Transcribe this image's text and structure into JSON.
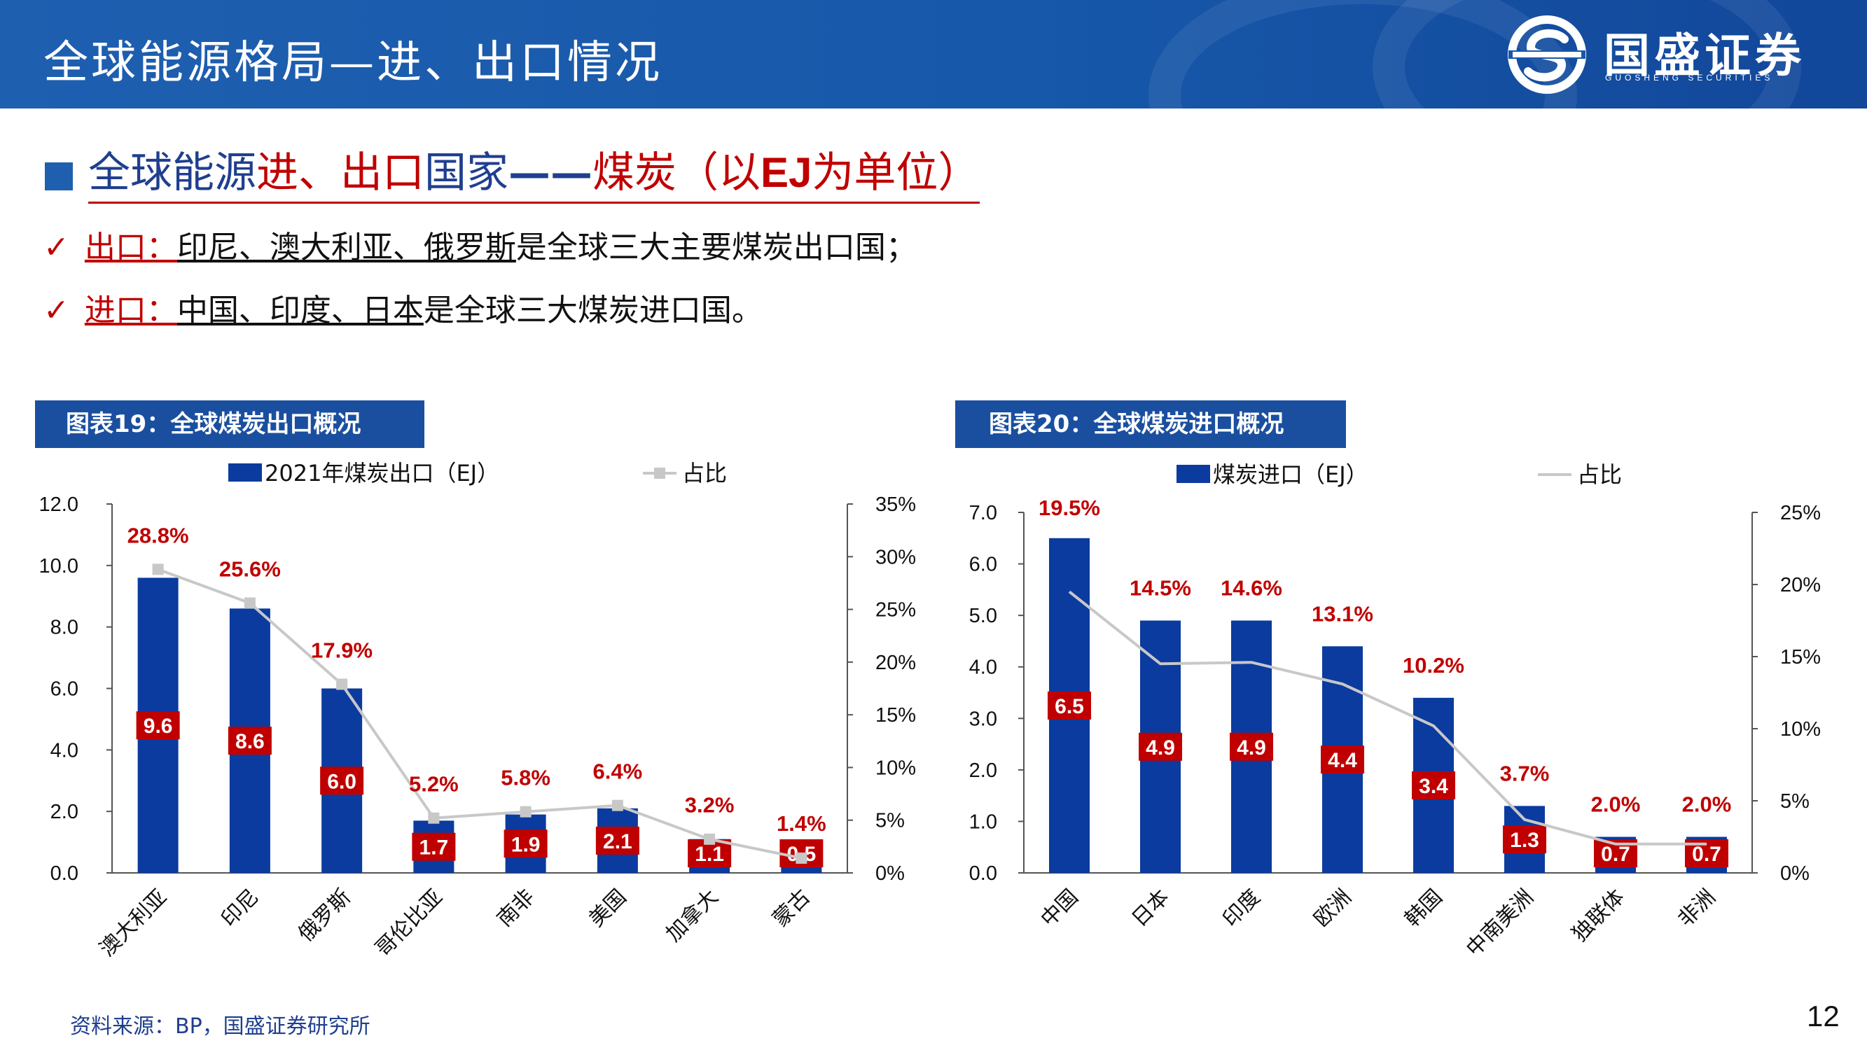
{
  "header": {
    "title": "全球能源格局—进、出口情况",
    "logo_text": "国盛证券",
    "logo_sub": "GUOSHENG SECURITIES"
  },
  "section": {
    "heading_part1": "全球能源",
    "heading_part2": "进、出口",
    "heading_part3": "国家",
    "heading_part4": "——",
    "heading_part5": "煤炭（以",
    "heading_part6": "EJ",
    "heading_part7": "为单位）"
  },
  "bullets": [
    {
      "check": "✓",
      "keyword": "出口：",
      "names": "印尼、澳大利亚、俄罗斯",
      "rest": "是全球三大主要煤炭出口国；"
    },
    {
      "check": "✓",
      "keyword": "进口：",
      "names": "中国、印度、日本",
      "rest": "是全球三大煤炭进口国。"
    }
  ],
  "colors": {
    "bar_blue": "#0b3b9f",
    "label_red": "#c00000",
    "line_gray": "#c8c8c8",
    "header_blue": "#1f5fb0"
  },
  "figures": [
    {
      "banner": "图表19：全球煤炭出口概况"
    },
    {
      "banner": "图表20：全球煤炭进口概况"
    }
  ],
  "chart_data": [
    {
      "type": "bar",
      "title": "图表19：全球煤炭出口概况",
      "categories": [
        "澳大利亚",
        "印尼",
        "俄罗斯",
        "哥伦比亚",
        "南非",
        "美国",
        "加拿大",
        "蒙古"
      ],
      "series": [
        {
          "name": "2021年煤炭出口（EJ）",
          "type": "bar",
          "axis": "left",
          "values": [
            9.6,
            8.6,
            6.0,
            1.7,
            1.9,
            2.1,
            1.1,
            0.5
          ],
          "labels": [
            "9.6",
            "8.6",
            "6.0",
            "1.7",
            "1.9",
            "2.1",
            "1.1",
            "0.5"
          ]
        },
        {
          "name": "占比",
          "type": "line",
          "axis": "right",
          "marker": "square",
          "values": [
            28.8,
            25.6,
            17.9,
            5.2,
            5.8,
            6.4,
            3.2,
            1.4
          ],
          "labels": [
            "28.8%",
            "25.6%",
            "17.9%",
            "5.2%",
            "5.8%",
            "6.4%",
            "3.2%",
            "1.4%"
          ]
        }
      ],
      "ylim_left": [
        0,
        12
      ],
      "yticks_left": [
        "0.0",
        "2.0",
        "4.0",
        "6.0",
        "8.0",
        "10.0",
        "12.0"
      ],
      "ylim_right": [
        0,
        35
      ],
      "yticks_right": [
        "0%",
        "5%",
        "10%",
        "15%",
        "20%",
        "25%",
        "30%",
        "35%"
      ],
      "grid": false,
      "legend": "top"
    },
    {
      "type": "bar",
      "title": "图表20：全球煤炭进口概况",
      "categories": [
        "中国",
        "日本",
        "印度",
        "欧洲",
        "韩国",
        "中南美洲",
        "独联体",
        "非洲"
      ],
      "series": [
        {
          "name": "煤炭进口（EJ）",
          "type": "bar",
          "axis": "left",
          "values": [
            6.5,
            4.9,
            4.9,
            4.4,
            3.4,
            1.3,
            0.7,
            0.7
          ],
          "labels": [
            "6.5",
            "4.9",
            "4.9",
            "4.4",
            "3.4",
            "1.3",
            "0.7",
            "0.7"
          ]
        },
        {
          "name": "占比",
          "type": "line",
          "axis": "right",
          "marker": "none",
          "values": [
            19.5,
            14.5,
            14.6,
            13.1,
            10.2,
            3.7,
            2.0,
            2.0
          ],
          "labels": [
            "19.5%",
            "14.5%",
            "14.6%",
            "13.1%",
            "10.2%",
            "3.7%",
            "2.0%",
            "2.0%"
          ]
        }
      ],
      "ylim_left": [
        0,
        7
      ],
      "yticks_left": [
        "0.0",
        "1.0",
        "2.0",
        "3.0",
        "4.0",
        "5.0",
        "6.0",
        "7.0"
      ],
      "ylim_right": [
        0,
        25
      ],
      "yticks_right": [
        "0%",
        "5%",
        "10%",
        "15%",
        "20%",
        "25%"
      ],
      "grid": false,
      "legend": "top"
    }
  ],
  "footer": {
    "source": "资料来源：BP，国盛证券研究所",
    "page_number": "12"
  }
}
